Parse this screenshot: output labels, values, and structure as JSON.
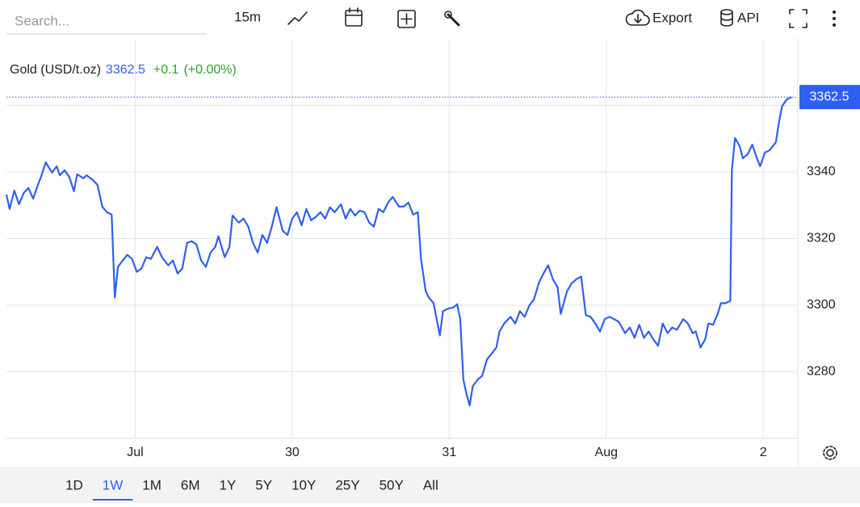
{
  "toolbar": {
    "search_placeholder": "Search...",
    "interval": "15m",
    "export": "Export",
    "api": "API"
  },
  "header": {
    "symbol": "Gold (USD/t.oz)",
    "price": "3362.5",
    "change": "+0.1",
    "change_pct": "(+0.00%)"
  },
  "ranges": {
    "items": [
      "1D",
      "1W",
      "1M",
      "6M",
      "1Y",
      "5Y",
      "10Y",
      "25Y",
      "50Y",
      "All"
    ],
    "selected": "1W"
  },
  "chart_data": {
    "type": "line",
    "color": "#2f5ff0",
    "grid": true,
    "last_price": 3362.5,
    "xlim": [
      0.18,
      5.22
    ],
    "xticks": [
      {
        "value": 1,
        "label": "Jul"
      },
      {
        "value": 2,
        "label": "30"
      },
      {
        "value": 3,
        "label": "31"
      },
      {
        "value": 4,
        "label": "Aug"
      },
      {
        "value": 5,
        "label": "2"
      }
    ],
    "ylim": [
      3260,
      3380
    ],
    "yticks": [
      3280,
      3300,
      3320,
      3340,
      3360
    ],
    "x": [
      0.18,
      0.2,
      0.23,
      0.26,
      0.29,
      0.32,
      0.35,
      0.38,
      0.4,
      0.43,
      0.47,
      0.5,
      0.52,
      0.55,
      0.58,
      0.61,
      0.63,
      0.67,
      0.69,
      0.73,
      0.76,
      0.79,
      0.82,
      0.85,
      0.87,
      0.89,
      0.92,
      0.95,
      0.98,
      1.01,
      1.04,
      1.07,
      1.1,
      1.14,
      1.17,
      1.21,
      1.24,
      1.27,
      1.3,
      1.33,
      1.36,
      1.39,
      1.42,
      1.45,
      1.48,
      1.51,
      1.53,
      1.57,
      1.6,
      1.62,
      1.66,
      1.69,
      1.72,
      1.75,
      1.78,
      1.81,
      1.84,
      1.87,
      1.9,
      1.94,
      1.97,
      2.0,
      2.03,
      2.06,
      2.09,
      2.12,
      2.15,
      2.18,
      2.21,
      2.24,
      2.27,
      2.31,
      2.34,
      2.37,
      2.4,
      2.43,
      2.46,
      2.49,
      2.52,
      2.55,
      2.58,
      2.61,
      2.64,
      2.68,
      2.71,
      2.74,
      2.77,
      2.8,
      2.82,
      2.85,
      2.87,
      2.9,
      2.92,
      2.94,
      2.96,
      2.99,
      3.03,
      3.05,
      3.07,
      3.09,
      3.11,
      3.13,
      3.15,
      3.18,
      3.21,
      3.24,
      3.27,
      3.3,
      3.32,
      3.35,
      3.39,
      3.42,
      3.45,
      3.48,
      3.51,
      3.54,
      3.57,
      3.6,
      3.63,
      3.66,
      3.69,
      3.71,
      3.75,
      3.78,
      3.81,
      3.84,
      3.87,
      3.9,
      3.93,
      3.96,
      3.99,
      4.02,
      4.05,
      4.08,
      4.12,
      4.15,
      4.18,
      4.21,
      4.24,
      4.27,
      4.3,
      4.33,
      4.36,
      4.39,
      4.42,
      4.45,
      4.49,
      4.52,
      4.55,
      4.57,
      4.6,
      4.63,
      4.65,
      4.68,
      4.71,
      4.73,
      4.76,
      4.79,
      4.8,
      4.82,
      4.85,
      4.87,
      4.9,
      4.93,
      4.96,
      4.98,
      5.01,
      5.04,
      5.06,
      5.08,
      5.1,
      5.12,
      5.15,
      5.18
    ],
    "series": [
      {
        "name": "Gold",
        "color": "#2f5ff0",
        "values": [
          3333.2,
          3328.9,
          3334.4,
          3330.3,
          3333.7,
          3335.2,
          3332.0,
          3336.1,
          3338.5,
          3342.9,
          3339.8,
          3341.7,
          3339.0,
          3340.5,
          3338.5,
          3334.2,
          3339.3,
          3338.1,
          3339.0,
          3337.6,
          3336.1,
          3329.6,
          3327.9,
          3327.2,
          3302.3,
          3311.5,
          3313.4,
          3315.1,
          3313.9,
          3310.0,
          3311.0,
          3314.4,
          3313.9,
          3317.5,
          3314.4,
          3312.0,
          3313.4,
          3309.5,
          3311.0,
          3318.7,
          3319.2,
          3318.2,
          3313.4,
          3311.5,
          3315.8,
          3317.5,
          3320.7,
          3314.4,
          3317.5,
          3326.9,
          3324.8,
          3326.0,
          3323.6,
          3318.7,
          3315.8,
          3321.1,
          3318.7,
          3323.6,
          3329.4,
          3322.3,
          3321.1,
          3326.0,
          3327.9,
          3324.0,
          3328.9,
          3325.5,
          3326.5,
          3327.9,
          3326.0,
          3329.4,
          3327.9,
          3330.3,
          3326.0,
          3328.9,
          3326.9,
          3328.4,
          3327.9,
          3324.8,
          3323.6,
          3328.9,
          3327.9,
          3330.8,
          3332.5,
          3329.6,
          3329.6,
          3330.8,
          3327.2,
          3327.9,
          3313.9,
          3304.2,
          3302.3,
          3300.6,
          3295.8,
          3290.9,
          3298.2,
          3298.9,
          3299.4,
          3300.3,
          3295.8,
          3277.6,
          3273.3,
          3269.9,
          3275.7,
          3277.6,
          3278.8,
          3283.7,
          3285.4,
          3287.3,
          3292.1,
          3294.5,
          3296.5,
          3294.5,
          3298.2,
          3296.5,
          3299.9,
          3301.8,
          3306.6,
          3309.5,
          3312.0,
          3307.8,
          3305.4,
          3297.4,
          3304.2,
          3306.6,
          3307.8,
          3308.6,
          3297.0,
          3296.5,
          3294.5,
          3292.1,
          3295.8,
          3296.5,
          3295.8,
          3295.0,
          3291.6,
          3293.3,
          3290.2,
          3294.1,
          3290.2,
          3292.1,
          3289.7,
          3287.8,
          3294.5,
          3291.6,
          3293.3,
          3292.6,
          3295.8,
          3294.5,
          3291.6,
          3292.1,
          3287.3,
          3289.7,
          3294.5,
          3294.1,
          3297.4,
          3300.6,
          3300.6,
          3301.3,
          3340.5,
          3350.2,
          3347.7,
          3344.1,
          3345.3,
          3348.2,
          3344.1,
          3341.7,
          3345.8,
          3346.5,
          3347.7,
          3348.9,
          3355.0,
          3359.8,
          3361.8,
          3362.5
        ]
      }
    ]
  }
}
